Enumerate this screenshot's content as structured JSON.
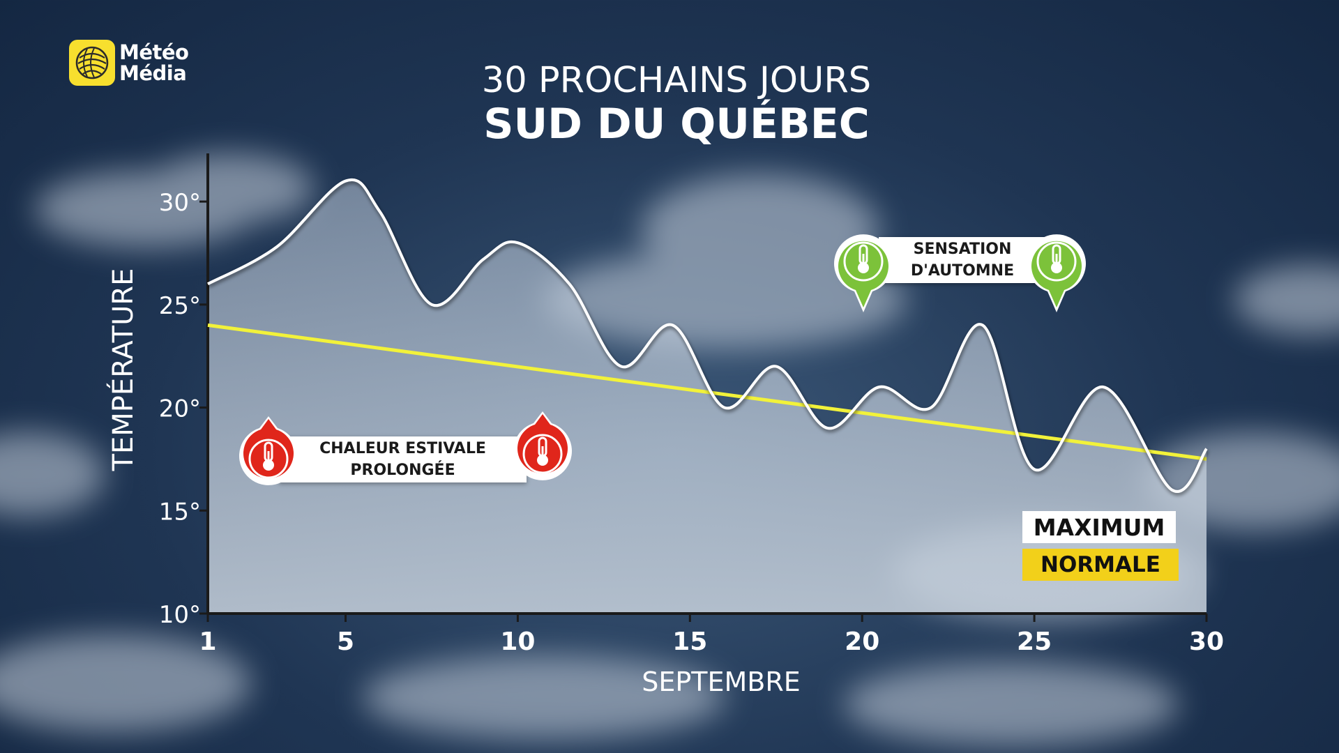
{
  "brand": {
    "line1": "Météo",
    "line2": "Média",
    "accent": "#f7df2e"
  },
  "title": {
    "line1": "30 PROCHAINS JOURS",
    "line2": "SUD DU QUÉBEC"
  },
  "colors": {
    "maximum_line": "#ffffff",
    "normale_line": "#f2f23a",
    "hot": "#e0261b",
    "cool": "#7cc23a"
  },
  "callouts": {
    "hot": {
      "line1": "CHALEUR ESTIVALE",
      "line2": "PROLONGÉE",
      "icon": "thermometer-icon"
    },
    "cool": {
      "line1": "SENSATION",
      "line2": "D'AUTOMNE",
      "icon": "thermometer-icon"
    }
  },
  "legend": {
    "maximum": "MAXIMUM",
    "normale": "NORMALE"
  },
  "chart_data": {
    "type": "line",
    "title": "30 PROCHAINS JOURS — SUD DU QUÉBEC",
    "xlabel": "SEPTEMBRE",
    "ylabel": "TEMPÉRATURE",
    "xlim": [
      1,
      30
    ],
    "ylim": [
      10,
      32
    ],
    "x_ticks": [
      1,
      5,
      10,
      15,
      20,
      25,
      30
    ],
    "y_ticks": [
      10,
      15,
      20,
      25,
      30
    ],
    "y_tick_labels": [
      "10°",
      "15°",
      "20°",
      "25°",
      "30°"
    ],
    "series": [
      {
        "name": "MAXIMUM",
        "x": [
          1,
          3,
          5,
          6,
          7.5,
          9,
          10,
          11.5,
          13,
          14.5,
          16,
          17.5,
          19,
          20.5,
          22,
          23.5,
          25,
          27,
          29,
          30
        ],
        "values": [
          26,
          27.8,
          31,
          29.5,
          25,
          27.2,
          28,
          26,
          22,
          24,
          20,
          22,
          19,
          21,
          20,
          24,
          17,
          21,
          16,
          18
        ]
      },
      {
        "name": "NORMALE",
        "x": [
          1,
          30
        ],
        "values": [
          24,
          17.5
        ]
      }
    ]
  }
}
